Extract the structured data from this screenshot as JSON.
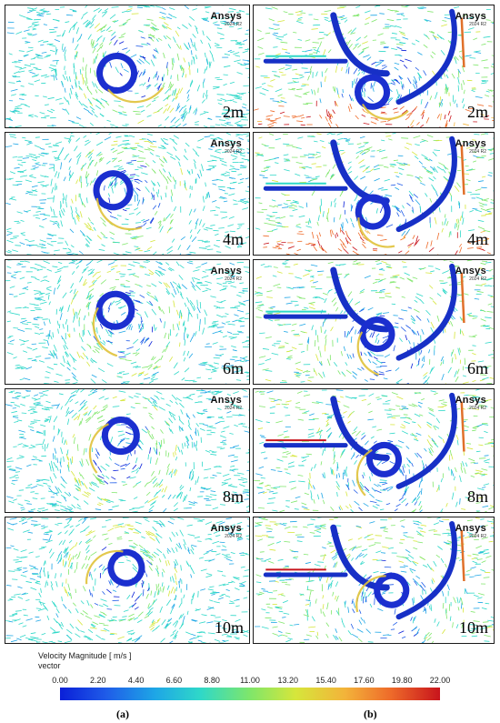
{
  "brand": {
    "name": "Ansys",
    "version": "2024 R2"
  },
  "rows": [
    {
      "distance": "2m"
    },
    {
      "distance": "4m"
    },
    {
      "distance": "6m"
    },
    {
      "distance": "8m"
    },
    {
      "distance": "10m"
    }
  ],
  "legend": {
    "title": "Velocity Magnitude [ m/s ]",
    "subtitle": "vector",
    "ticks": [
      "0.00",
      "2.20",
      "4.40",
      "6.60",
      "8.80",
      "11.00",
      "13.20",
      "15.40",
      "17.60",
      "19.80",
      "22.00"
    ]
  },
  "captions": {
    "left": "(a)",
    "right": "(b)"
  },
  "colors": {
    "low": "#0a1fd8",
    "high": "#c8141c"
  }
}
